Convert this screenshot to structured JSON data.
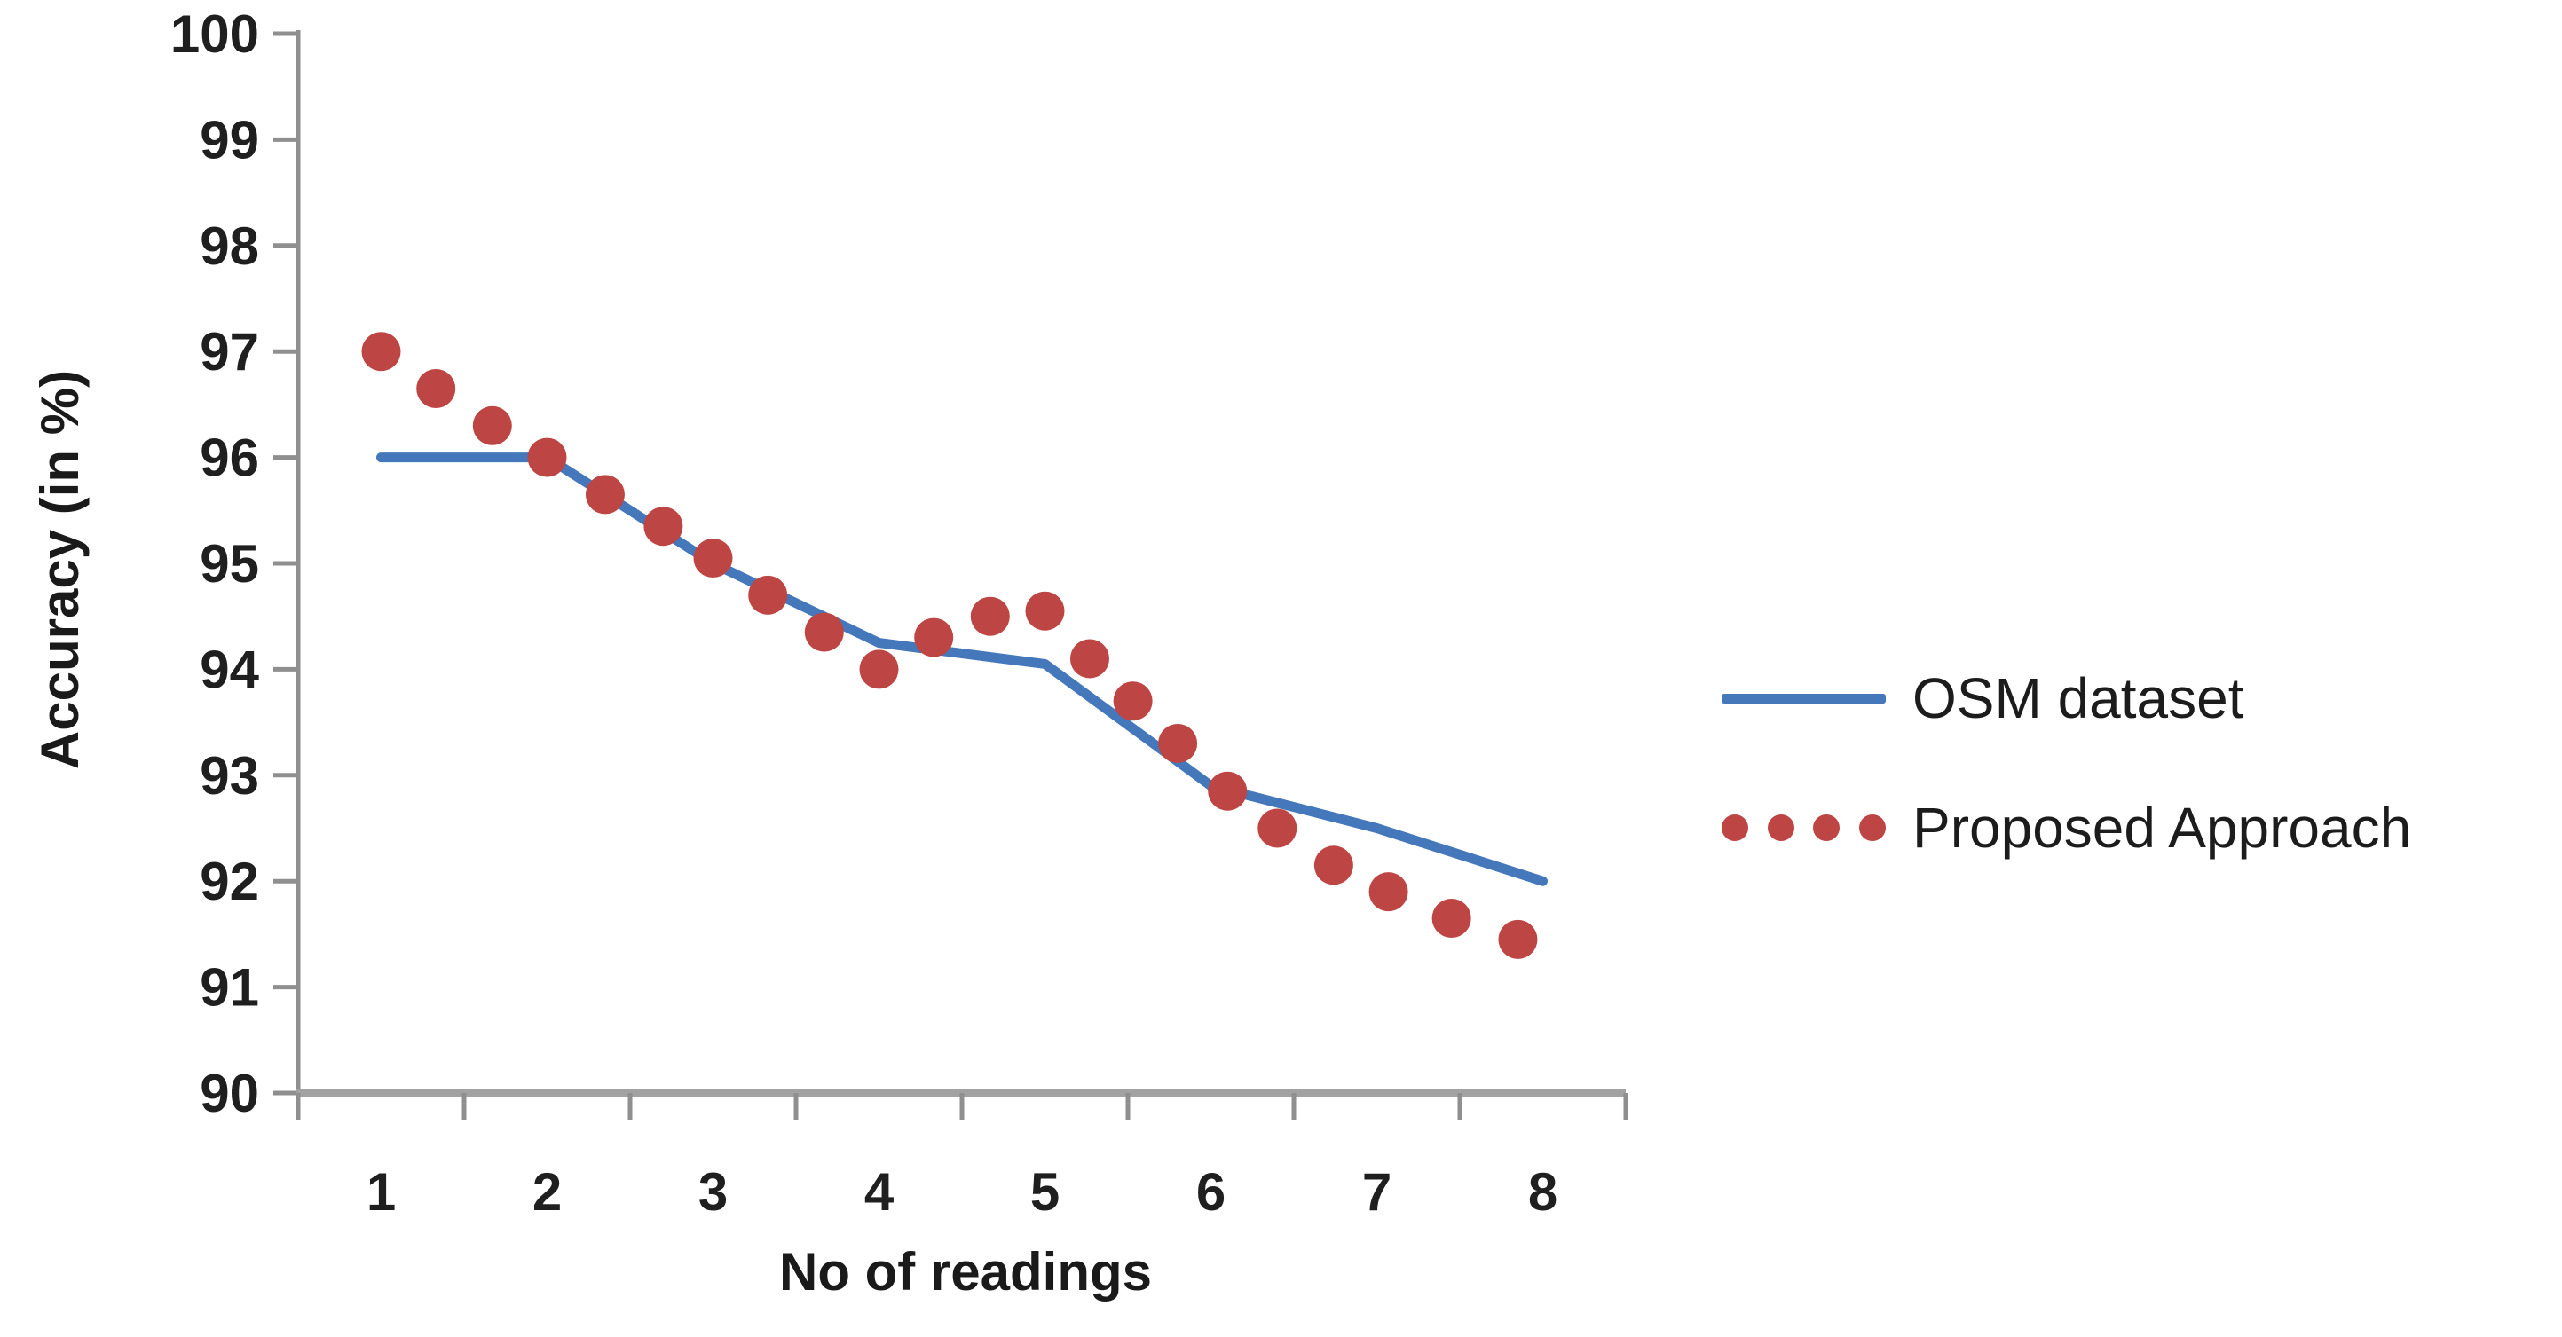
{
  "chart_data": {
    "type": "line",
    "title": "",
    "xlabel": "No of readings",
    "ylabel": "Accuracy  (in %)",
    "xlim": [
      0.5,
      8.5
    ],
    "ylim": [
      90,
      100
    ],
    "x_ticks": [
      1,
      2,
      3,
      4,
      5,
      6,
      7,
      8
    ],
    "y_ticks": [
      100,
      99,
      98,
      97,
      96,
      95,
      94,
      93,
      92,
      91,
      90
    ],
    "grid": false,
    "legend_position": "right",
    "axis_color": "#8f8f8f",
    "x_axis_line_color": "#a2a2a2",
    "tick_label_color": "#1f1f1f",
    "series": [
      {
        "name": "OSM dataset",
        "type": "line",
        "color": "#4577BB",
        "x": [
          1,
          2,
          3,
          4,
          5,
          6,
          7,
          8
        ],
        "values": [
          96.0,
          96.0,
          95.0,
          94.25,
          94.05,
          92.9,
          92.5,
          92.0
        ]
      },
      {
        "name": "Proposed Approach",
        "type": "scatter",
        "color": "#BD4543",
        "x": [
          1.0,
          1.33,
          1.67,
          2.0,
          2.35,
          2.7,
          3.0,
          3.33,
          3.67,
          4.0,
          4.33,
          4.67,
          5.0,
          5.27,
          5.53,
          5.8,
          6.1,
          6.4,
          6.74,
          7.07,
          7.45,
          7.85
        ],
        "values": [
          97.0,
          96.65,
          96.3,
          96.0,
          95.65,
          95.35,
          95.05,
          94.7,
          94.35,
          94.0,
          94.3,
          94.5,
          94.55,
          94.1,
          93.7,
          93.3,
          92.85,
          92.5,
          92.15,
          91.9,
          91.65,
          91.45
        ]
      }
    ]
  }
}
